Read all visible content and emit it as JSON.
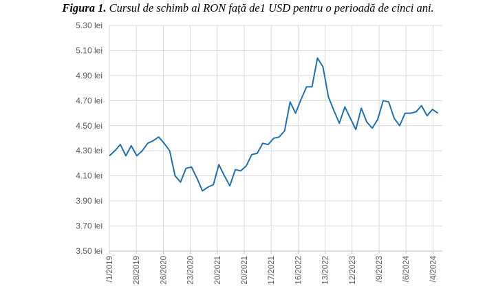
{
  "chart_data": {
    "type": "line",
    "title_bold": "Figura 1.",
    "title_rest": " Cursul de schimb al RON față de1 USD pentru o perioadă de cinci ani.",
    "xlabel": "",
    "ylabel": "",
    "ylim": [
      3.5,
      5.3
    ],
    "y_ticks": [
      "3.50 lei",
      "3.70 lei",
      "3.90 lei",
      "4.10 lei",
      "4.30 lei",
      "4.50 lei",
      "4.70 lei",
      "4.90 lei",
      "5.10 lei",
      "5.30 lei"
    ],
    "x_tick_labels": [
      "/1/2019",
      "28/2019",
      "26/2020",
      "23/2020",
      "20/2021",
      "20/2021",
      "17/2021",
      "16/2022",
      "13/2022",
      "12/2023",
      "/9/2023",
      "/6/2024",
      "/4/2024"
    ],
    "grid": true,
    "legend": "none",
    "color": "#1f6fb4",
    "series": [
      {
        "name": "RON/USD",
        "values": [
          4.26,
          4.3,
          4.35,
          4.26,
          4.34,
          4.26,
          4.3,
          4.36,
          4.38,
          4.41,
          4.36,
          4.3,
          4.1,
          4.05,
          4.16,
          4.17,
          4.08,
          3.98,
          4.01,
          4.03,
          4.19,
          4.1,
          4.02,
          4.15,
          4.14,
          4.18,
          4.27,
          4.28,
          4.36,
          4.35,
          4.4,
          4.41,
          4.46,
          4.69,
          4.6,
          4.71,
          4.81,
          4.81,
          5.04,
          4.97,
          4.73,
          4.62,
          4.52,
          4.65,
          4.56,
          4.47,
          4.64,
          4.53,
          4.48,
          4.55,
          4.7,
          4.69,
          4.56,
          4.5,
          4.6,
          4.6,
          4.61,
          4.66,
          4.58,
          4.63,
          4.6
        ]
      }
    ]
  }
}
